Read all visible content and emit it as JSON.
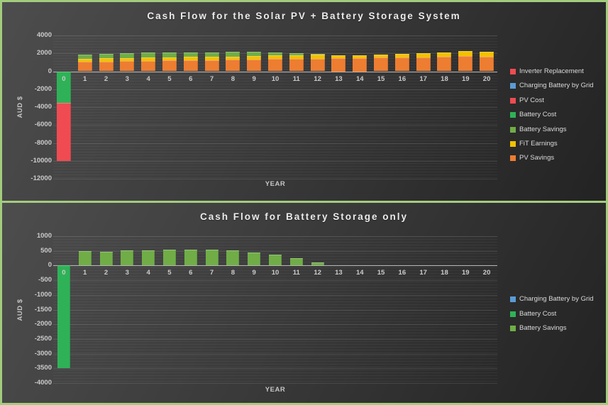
{
  "page": {
    "frame_color": "#a3cc7d",
    "panel_background": "#3a3a3a"
  },
  "chart_data": [
    {
      "type": "stacked-bar",
      "title": "Cash Flow for the Solar PV + Battery Storage System",
      "xlabel": "YEAR",
      "ylabel": "AUD $",
      "ylim": [
        -12000,
        4000
      ],
      "ytick_step": 2000,
      "grid": true,
      "legend_position": "right",
      "categories": [
        0,
        1,
        2,
        3,
        4,
        5,
        6,
        7,
        8,
        9,
        10,
        11,
        12,
        13,
        14,
        15,
        16,
        17,
        18,
        19,
        20
      ],
      "series": [
        {
          "name": "PV Savings",
          "color": "#ED7D31",
          "values": [
            0,
            1040,
            1100,
            1130,
            1180,
            1190,
            1230,
            1220,
            1270,
            1320,
            1350,
            1390,
            1420,
            1500,
            1500,
            1510,
            1530,
            1520,
            1610,
            1690,
            1630
          ]
        },
        {
          "name": "FiT Earnings",
          "color": "#F2C100",
          "values": [
            0,
            330,
            340,
            350,
            360,
            360,
            370,
            370,
            380,
            390,
            395,
            400,
            410,
            300,
            320,
            350,
            420,
            480,
            520,
            560,
            550
          ]
        },
        {
          "name": "Battery Savings",
          "color": "#70AD47",
          "values": [
            0,
            490,
            470,
            510,
            520,
            545,
            530,
            545,
            515,
            455,
            375,
            240,
            100,
            0,
            0,
            0,
            0,
            0,
            0,
            0,
            0
          ]
        },
        {
          "name": "Battery Cost",
          "color": "#2FB257",
          "values": [
            -3500,
            0,
            0,
            0,
            0,
            0,
            0,
            0,
            0,
            0,
            0,
            0,
            0,
            0,
            0,
            0,
            0,
            0,
            0,
            0,
            0
          ]
        },
        {
          "name": "PV Cost",
          "color": "#F04B52",
          "values": [
            -6500,
            0,
            0,
            0,
            0,
            0,
            0,
            0,
            0,
            0,
            0,
            0,
            0,
            0,
            0,
            0,
            0,
            0,
            0,
            0,
            0
          ]
        },
        {
          "name": "Inverter Replacement",
          "color": "#F04B52",
          "values": [
            0,
            0,
            0,
            0,
            0,
            0,
            0,
            0,
            0,
            0,
            0,
            0,
            0,
            0,
            0,
            0,
            0,
            0,
            0,
            0,
            0
          ]
        },
        {
          "name": "Charging Battery by Grid",
          "color": "#5B9BD5",
          "values": [
            0,
            0,
            0,
            0,
            0,
            0,
            0,
            0,
            0,
            0,
            0,
            0,
            0,
            0,
            0,
            0,
            0,
            0,
            0,
            0,
            0
          ]
        }
      ],
      "legend": [
        {
          "label": "Inverter Replacement",
          "color": "#F04B52"
        },
        {
          "label": "Charging Battery by Grid",
          "color": "#5B9BD5"
        },
        {
          "label": "PV Cost",
          "color": "#F04B52"
        },
        {
          "label": "Battery Cost",
          "color": "#2FB257"
        },
        {
          "label": "Battery Savings",
          "color": "#70AD47"
        },
        {
          "label": "FiT Earnings",
          "color": "#F2C100"
        },
        {
          "label": "PV Savings",
          "color": "#ED7D31"
        }
      ]
    },
    {
      "type": "stacked-bar",
      "title": "Cash Flow for Battery Storage only",
      "xlabel": "YEAR",
      "ylabel": "AUD $",
      "ylim": [
        -4000,
        1000
      ],
      "ytick_step": 500,
      "grid": true,
      "legend_position": "right",
      "categories": [
        0,
        1,
        2,
        3,
        4,
        5,
        6,
        7,
        8,
        9,
        10,
        11,
        12,
        13,
        14,
        15,
        16,
        17,
        18,
        19,
        20
      ],
      "series": [
        {
          "name": "Battery Savings",
          "color": "#70AD47",
          "values": [
            0,
            490,
            470,
            510,
            520,
            545,
            530,
            545,
            515,
            455,
            375,
            240,
            100,
            0,
            0,
            0,
            0,
            0,
            0,
            0,
            0
          ]
        },
        {
          "name": "Battery Cost",
          "color": "#2FB257",
          "values": [
            -3500,
            0,
            0,
            0,
            0,
            0,
            0,
            0,
            0,
            0,
            0,
            0,
            0,
            0,
            0,
            0,
            0,
            0,
            0,
            0,
            0
          ]
        },
        {
          "name": "Charging Battery by Grid",
          "color": "#5B9BD5",
          "values": [
            0,
            0,
            0,
            0,
            0,
            0,
            0,
            0,
            0,
            0,
            0,
            0,
            0,
            0,
            0,
            0,
            0,
            0,
            0,
            0,
            0
          ]
        }
      ],
      "legend": [
        {
          "label": "Charging Battery by Grid",
          "color": "#5B9BD5"
        },
        {
          "label": "Battery Cost",
          "color": "#2FB257"
        },
        {
          "label": "Battery Savings",
          "color": "#70AD47"
        }
      ]
    }
  ]
}
